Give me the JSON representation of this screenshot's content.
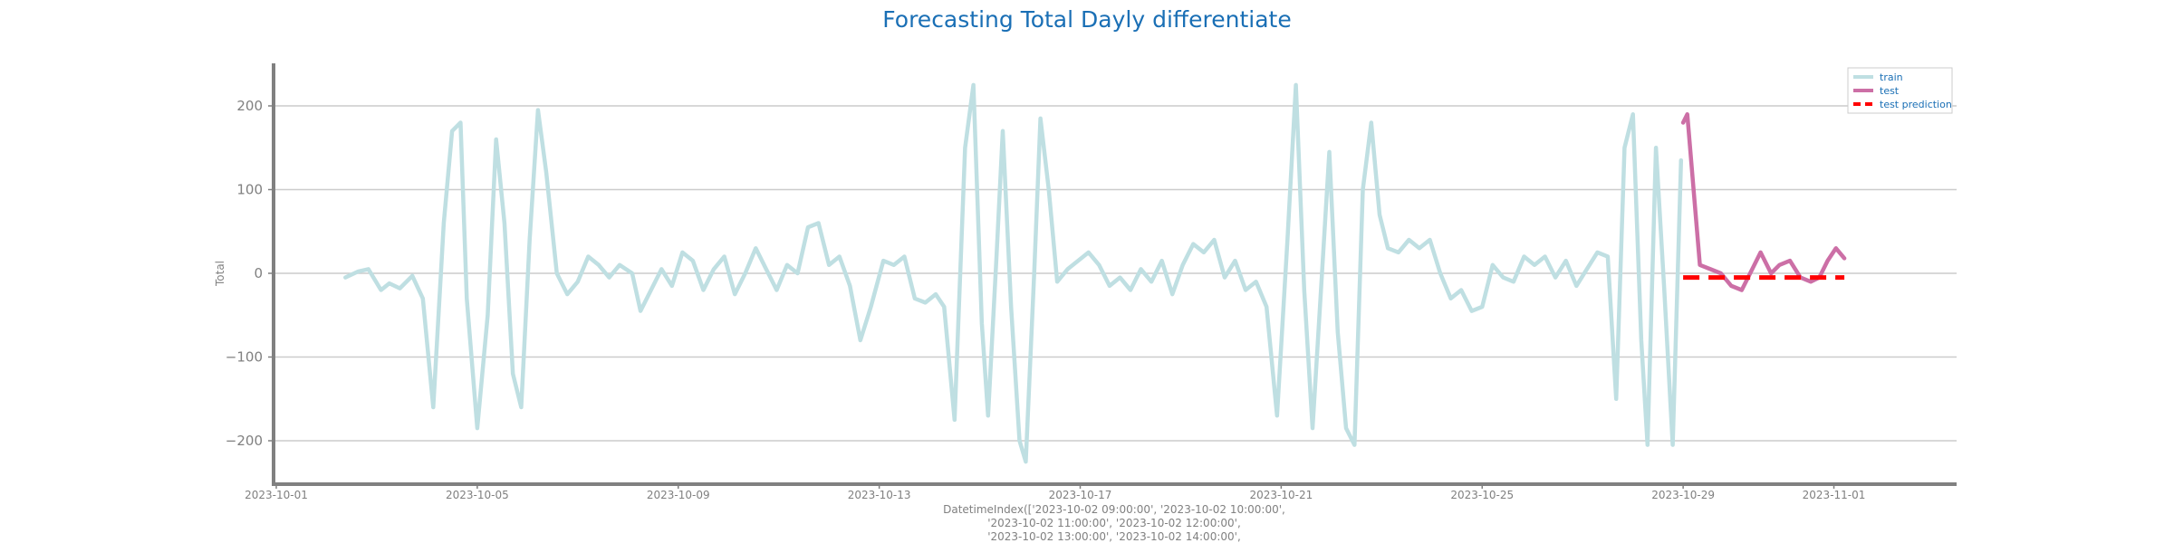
{
  "chart_data": {
    "type": "line",
    "title": "Forecasting Total Dayly differentiate",
    "ylabel": "Total",
    "xlabel_lines": [
      "DatetimeIndex(['2023-10-02 09:00:00', '2023-10-02 10:00:00',",
      "'2023-10-02 11:00:00', '2023-10-02 12:00:00',",
      "'2023-10-02 13:00:00', '2023-10-02 14:00:00',"
    ],
    "x_range": [
      "2023-10-01",
      "2023-11-02"
    ],
    "ylim": [
      -250,
      250
    ],
    "yticks": [
      -200,
      -100,
      0,
      100,
      200
    ],
    "xticks": [
      "2023-10-01",
      "2023-10-05",
      "2023-10-09",
      "2023-10-13",
      "2023-10-17",
      "2023-10-21",
      "2023-10-25",
      "2023-10-29",
      "2023-11-01"
    ],
    "grid": "horizontal",
    "legend_position": "top-right",
    "series": [
      {
        "name": "train",
        "color": "#bfdfe2",
        "style": "solid",
        "points": [
          [
            "2023-10-02 09:00",
            -5
          ],
          [
            "2023-10-02 15:00",
            2
          ],
          [
            "2023-10-02 20:00",
            5
          ],
          [
            "2023-10-03 02:00",
            -20
          ],
          [
            "2023-10-03 06:00",
            -12
          ],
          [
            "2023-10-03 11:00",
            -18
          ],
          [
            "2023-10-03 17:00",
            -3
          ],
          [
            "2023-10-03 22:00",
            -30
          ],
          [
            "2023-10-04 03:00",
            -160
          ],
          [
            "2023-10-04 08:00",
            60
          ],
          [
            "2023-10-04 12:00",
            170
          ],
          [
            "2023-10-04 16:00",
            180
          ],
          [
            "2023-10-04 19:00",
            -30
          ],
          [
            "2023-10-05 00:00",
            -185
          ],
          [
            "2023-10-05 05:00",
            -50
          ],
          [
            "2023-10-05 09:00",
            160
          ],
          [
            "2023-10-05 13:00",
            60
          ],
          [
            "2023-10-05 17:00",
            -120
          ],
          [
            "2023-10-05 21:00",
            -160
          ],
          [
            "2023-10-06 01:00",
            40
          ],
          [
            "2023-10-06 05:00",
            195
          ],
          [
            "2023-10-06 09:00",
            120
          ],
          [
            "2023-10-06 14:00",
            0
          ],
          [
            "2023-10-06 19:00",
            -25
          ],
          [
            "2023-10-07 00:00",
            -10
          ],
          [
            "2023-10-07 05:00",
            20
          ],
          [
            "2023-10-07 10:00",
            10
          ],
          [
            "2023-10-07 15:00",
            -5
          ],
          [
            "2023-10-07 20:00",
            10
          ],
          [
            "2023-10-08 02:00",
            0
          ],
          [
            "2023-10-08 06:00",
            -45
          ],
          [
            "2023-10-08 11:00",
            -20
          ],
          [
            "2023-10-08 16:00",
            5
          ],
          [
            "2023-10-08 21:00",
            -15
          ],
          [
            "2023-10-09 02:00",
            25
          ],
          [
            "2023-10-09 07:00",
            15
          ],
          [
            "2023-10-09 12:00",
            -20
          ],
          [
            "2023-10-09 17:00",
            5
          ],
          [
            "2023-10-09 22:00",
            20
          ],
          [
            "2023-10-10 03:00",
            -25
          ],
          [
            "2023-10-10 08:00",
            0
          ],
          [
            "2023-10-10 13:00",
            30
          ],
          [
            "2023-10-10 18:00",
            5
          ],
          [
            "2023-10-10 23:00",
            -20
          ],
          [
            "2023-10-11 04:00",
            10
          ],
          [
            "2023-10-11 09:00",
            0
          ],
          [
            "2023-10-11 14:00",
            55
          ],
          [
            "2023-10-11 19:00",
            60
          ],
          [
            "2023-10-12 00:00",
            10
          ],
          [
            "2023-10-12 05:00",
            20
          ],
          [
            "2023-10-12 10:00",
            -15
          ],
          [
            "2023-10-12 15:00",
            -80
          ],
          [
            "2023-10-12 20:00",
            -40
          ],
          [
            "2023-10-13 02:00",
            15
          ],
          [
            "2023-10-13 07:00",
            10
          ],
          [
            "2023-10-13 12:00",
            20
          ],
          [
            "2023-10-13 17:00",
            -30
          ],
          [
            "2023-10-13 22:00",
            -35
          ],
          [
            "2023-10-14 03:00",
            -25
          ],
          [
            "2023-10-14 07:00",
            -40
          ],
          [
            "2023-10-14 12:00",
            -175
          ],
          [
            "2023-10-14 17:00",
            150
          ],
          [
            "2023-10-14 21:00",
            225
          ],
          [
            "2023-10-15 01:00",
            -60
          ],
          [
            "2023-10-15 04:00",
            -170
          ],
          [
            "2023-10-15 08:00",
            20
          ],
          [
            "2023-10-15 11:00",
            170
          ],
          [
            "2023-10-15 15:00",
            -40
          ],
          [
            "2023-10-15 19:00",
            -200
          ],
          [
            "2023-10-15 22:00",
            -225
          ],
          [
            "2023-10-16 02:00",
            0
          ],
          [
            "2023-10-16 05:00",
            185
          ],
          [
            "2023-10-16 09:00",
            100
          ],
          [
            "2023-10-16 13:00",
            -10
          ],
          [
            "2023-10-16 18:00",
            5
          ],
          [
            "2023-10-16 23:00",
            15
          ],
          [
            "2023-10-17 04:00",
            25
          ],
          [
            "2023-10-17 09:00",
            10
          ],
          [
            "2023-10-17 14:00",
            -15
          ],
          [
            "2023-10-17 19:00",
            -5
          ],
          [
            "2023-10-18 00:00",
            -20
          ],
          [
            "2023-10-18 05:00",
            5
          ],
          [
            "2023-10-18 10:00",
            -10
          ],
          [
            "2023-10-18 15:00",
            15
          ],
          [
            "2023-10-18 20:00",
            -25
          ],
          [
            "2023-10-19 01:00",
            10
          ],
          [
            "2023-10-19 06:00",
            35
          ],
          [
            "2023-10-19 11:00",
            25
          ],
          [
            "2023-10-19 16:00",
            40
          ],
          [
            "2023-10-19 21:00",
            -5
          ],
          [
            "2023-10-20 02:00",
            15
          ],
          [
            "2023-10-20 07:00",
            -20
          ],
          [
            "2023-10-20 12:00",
            -10
          ],
          [
            "2023-10-20 17:00",
            -40
          ],
          [
            "2023-10-20 22:00",
            -170
          ],
          [
            "2023-10-21 03:00",
            40
          ],
          [
            "2023-10-21 07:00",
            225
          ],
          [
            "2023-10-21 11:00",
            -20
          ],
          [
            "2023-10-21 15:00",
            -185
          ],
          [
            "2023-10-21 19:00",
            -20
          ],
          [
            "2023-10-21 23:00",
            145
          ],
          [
            "2023-10-22 03:00",
            -70
          ],
          [
            "2023-10-22 07:00",
            -185
          ],
          [
            "2023-10-22 11:00",
            -205
          ],
          [
            "2023-10-22 15:00",
            100
          ],
          [
            "2023-10-22 19:00",
            180
          ],
          [
            "2023-10-22 23:00",
            70
          ],
          [
            "2023-10-23 03:00",
            30
          ],
          [
            "2023-10-23 08:00",
            25
          ],
          [
            "2023-10-23 13:00",
            40
          ],
          [
            "2023-10-23 18:00",
            30
          ],
          [
            "2023-10-23 23:00",
            40
          ],
          [
            "2023-10-24 04:00",
            0
          ],
          [
            "2023-10-24 09:00",
            -30
          ],
          [
            "2023-10-24 14:00",
            -20
          ],
          [
            "2023-10-24 19:00",
            -45
          ],
          [
            "2023-10-25 00:00",
            -40
          ],
          [
            "2023-10-25 05:00",
            10
          ],
          [
            "2023-10-25 10:00",
            -5
          ],
          [
            "2023-10-25 15:00",
            -10
          ],
          [
            "2023-10-25 20:00",
            20
          ],
          [
            "2023-10-26 01:00",
            10
          ],
          [
            "2023-10-26 06:00",
            20
          ],
          [
            "2023-10-26 11:00",
            -5
          ],
          [
            "2023-10-26 16:00",
            15
          ],
          [
            "2023-10-26 21:00",
            -15
          ],
          [
            "2023-10-27 02:00",
            5
          ],
          [
            "2023-10-27 07:00",
            25
          ],
          [
            "2023-10-27 12:00",
            20
          ],
          [
            "2023-10-27 16:00",
            -150
          ],
          [
            "2023-10-27 20:00",
            150
          ],
          [
            "2023-10-28 00:00",
            190
          ],
          [
            "2023-10-28 04:00",
            -80
          ],
          [
            "2023-10-28 07:00",
            -205
          ],
          [
            "2023-10-28 11:00",
            150
          ],
          [
            "2023-10-28 15:00",
            -20
          ],
          [
            "2023-10-28 19:00",
            -205
          ],
          [
            "2023-10-28 23:00",
            135
          ]
        ]
      },
      {
        "name": "test",
        "color": "#cc6fa6",
        "style": "solid",
        "points": [
          [
            "2023-10-29 00:00",
            180
          ],
          [
            "2023-10-29 02:00",
            190
          ],
          [
            "2023-10-29 08:00",
            10
          ],
          [
            "2023-10-29 13:00",
            5
          ],
          [
            "2023-10-29 18:00",
            0
          ],
          [
            "2023-10-29 23:00",
            -15
          ],
          [
            "2023-10-30 04:00",
            -20
          ],
          [
            "2023-10-30 09:00",
            5
          ],
          [
            "2023-10-30 13:00",
            25
          ],
          [
            "2023-10-30 18:00",
            0
          ],
          [
            "2023-10-30 22:00",
            10
          ],
          [
            "2023-10-31 03:00",
            15
          ],
          [
            "2023-10-31 08:00",
            -5
          ],
          [
            "2023-10-31 13:00",
            -10
          ],
          [
            "2023-10-31 17:00",
            -5
          ],
          [
            "2023-10-31 21:00",
            15
          ],
          [
            "2023-11-01 01:00",
            30
          ],
          [
            "2023-11-01 05:00",
            18
          ]
        ]
      },
      {
        "name": "test prediction",
        "color": "#ff0000",
        "style": "dashed",
        "points": [
          [
            "2023-10-29 00:00",
            -5
          ],
          [
            "2023-11-01 05:00",
            -5
          ]
        ]
      }
    ]
  }
}
